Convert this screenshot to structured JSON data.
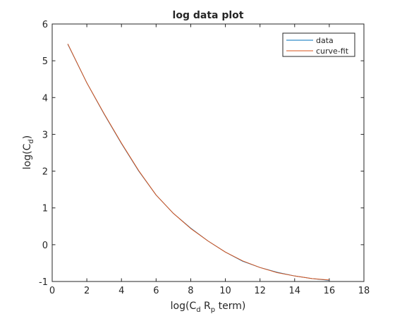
{
  "chart_data": {
    "type": "line",
    "title": "log data plot",
    "xlabel": {
      "base": "log(C",
      "sub1": "d",
      "mid": " R",
      "sub2": "p",
      "tail": " term)"
    },
    "ylabel": {
      "base": "log(C",
      "sub": "d",
      "tail": ")"
    },
    "xlim": [
      0,
      18
    ],
    "ylim": [
      -1,
      6
    ],
    "xticks": [
      "0",
      "2",
      "4",
      "6",
      "8",
      "10",
      "12",
      "14",
      "16",
      "18"
    ],
    "yticks": [
      "-1",
      "0",
      "1",
      "2",
      "3",
      "4",
      "5",
      "6"
    ],
    "legend_position": "top-right",
    "grid": false,
    "series": [
      {
        "name": "data",
        "color": "#0072BD",
        "x": [
          0.9,
          2,
          3,
          4,
          5,
          6,
          7,
          8,
          9,
          10,
          11,
          12,
          13,
          14,
          15,
          16
        ],
        "y": [
          5.45,
          4.4,
          3.55,
          2.75,
          2.0,
          1.35,
          0.85,
          0.45,
          0.1,
          -0.2,
          -0.45,
          -0.62,
          -0.75,
          -0.85,
          -0.92,
          -0.97
        ]
      },
      {
        "name": "curve-fit",
        "color": "#D95319",
        "x": [
          0.9,
          2,
          3,
          4,
          5,
          6,
          7,
          8,
          9,
          10,
          11,
          12,
          13,
          14,
          15,
          16
        ],
        "y": [
          5.46,
          4.4,
          3.56,
          2.76,
          2.01,
          1.35,
          0.85,
          0.44,
          0.1,
          -0.2,
          -0.44,
          -0.62,
          -0.76,
          -0.85,
          -0.92,
          -0.96
        ]
      }
    ]
  }
}
